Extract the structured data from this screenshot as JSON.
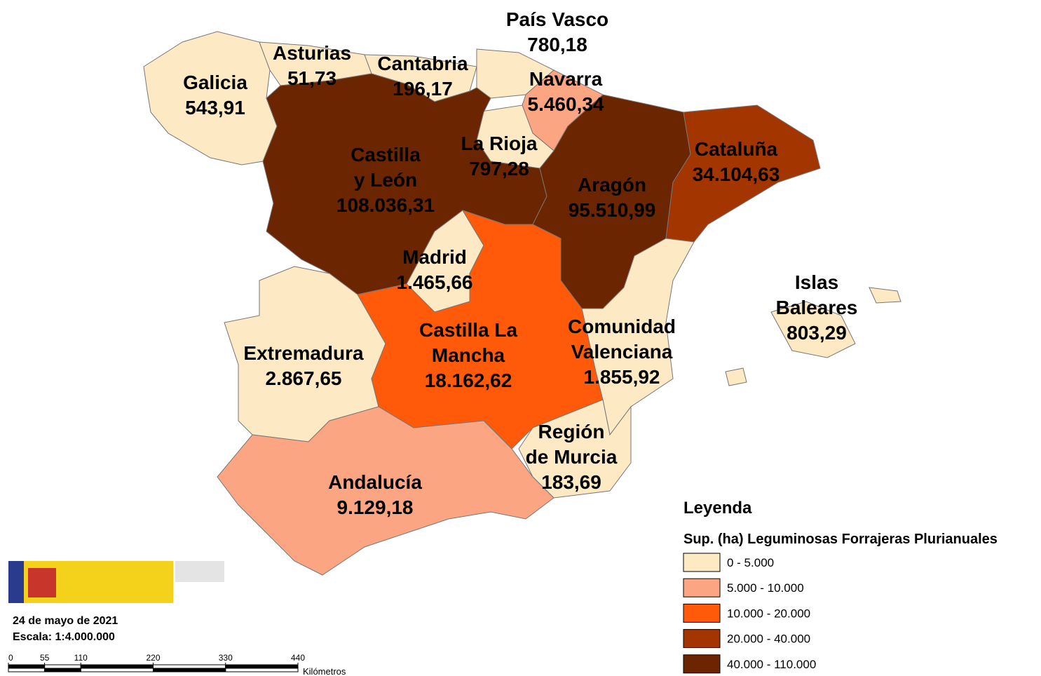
{
  "regions": [
    {
      "name": [
        "Galicia"
      ],
      "value": "543,91",
      "color": "#fde9c3"
    },
    {
      "name": [
        "Asturias"
      ],
      "value": "51,73",
      "color": "#fde9c3"
    },
    {
      "name": [
        "Cantabria"
      ],
      "value": "196,17",
      "color": "#fde9c3"
    },
    {
      "name": [
        "País Vasco"
      ],
      "value": "780,18",
      "color": "#fde9c3"
    },
    {
      "name": [
        "Navarra"
      ],
      "value": "5.460,34",
      "color": "#fca582"
    },
    {
      "name": [
        "La Rioja"
      ],
      "value": "797,28",
      "color": "#fde9c3"
    },
    {
      "name": [
        "Castilla",
        "y León"
      ],
      "value": "108.036,31",
      "color": "#6b2500"
    },
    {
      "name": [
        "Aragón"
      ],
      "value": "95.510,99",
      "color": "#6b2500"
    },
    {
      "name": [
        "Cataluña"
      ],
      "value": "34.104,63",
      "color": "#a33500"
    },
    {
      "name": [
        "Madrid"
      ],
      "value": "1.465,66",
      "color": "#fde9c3"
    },
    {
      "name": [
        "Extremadura"
      ],
      "value": "2.867,65",
      "color": "#fde9c3"
    },
    {
      "name": [
        "Castilla La",
        "Mancha"
      ],
      "value": "18.162,62",
      "color": "#fe5a0a"
    },
    {
      "name": [
        "Comunidad",
        "Valenciana"
      ],
      "value": "1.855,92",
      "color": "#fde9c3"
    },
    {
      "name": [
        "Región",
        "de Murcia"
      ],
      "value": "183,69",
      "color": "#fde9c3"
    },
    {
      "name": [
        "Andalucía"
      ],
      "value": "9.129,18",
      "color": "#fca582"
    },
    {
      "name": [
        "Islas",
        "Baleares"
      ],
      "value": "803,29",
      "color": "#fde9c3"
    }
  ],
  "legend": {
    "title": "Leyenda",
    "subtitle": "Sup. (ha) Leguminosas Forrajeras Plurianuales",
    "classes": [
      {
        "label": "0 - 5.000",
        "color": "#fde9c3"
      },
      {
        "label": "5.000 - 10.000",
        "color": "#fca582"
      },
      {
        "label": "10.000 - 20.000",
        "color": "#fe5a0a"
      },
      {
        "label": "20.000 - 40.000",
        "color": "#a33500"
      },
      {
        "label": "40.000 - 110.000",
        "color": "#6b2500"
      }
    ]
  },
  "footer": {
    "date": "24 de mayo de 2021",
    "scale": "Escala: 1:4.000.000"
  },
  "scale_bar": {
    "ticks": [
      0,
      55,
      110,
      220,
      330,
      440
    ],
    "unit": "Kilómetros"
  }
}
